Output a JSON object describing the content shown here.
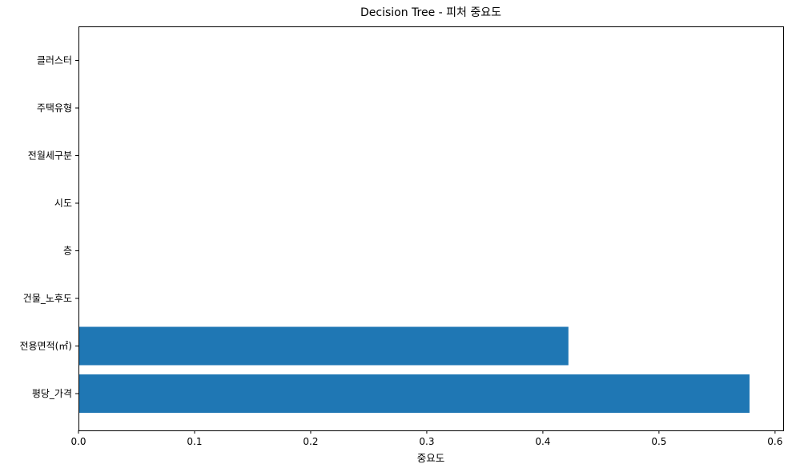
{
  "chart_data": {
    "type": "bar",
    "orientation": "horizontal",
    "title": "Decision Tree - 피처 중요도",
    "xlabel": "중요도",
    "ylabel": "",
    "categories": [
      "평당_가격",
      "전용면적(㎡)",
      "건물_노후도",
      "층",
      "시도",
      "전월세구분",
      "주택유형",
      "클러스터"
    ],
    "values": [
      0.578,
      0.422,
      0.0,
      0.0,
      0.0,
      0.0,
      0.0,
      0.0
    ],
    "xlim": [
      0,
      0.607
    ],
    "xticks": [
      "0.0",
      "0.1",
      "0.2",
      "0.3",
      "0.4",
      "0.5",
      "0.6"
    ],
    "grid": false,
    "legend": "none",
    "bar_color": "#1f77b4"
  }
}
